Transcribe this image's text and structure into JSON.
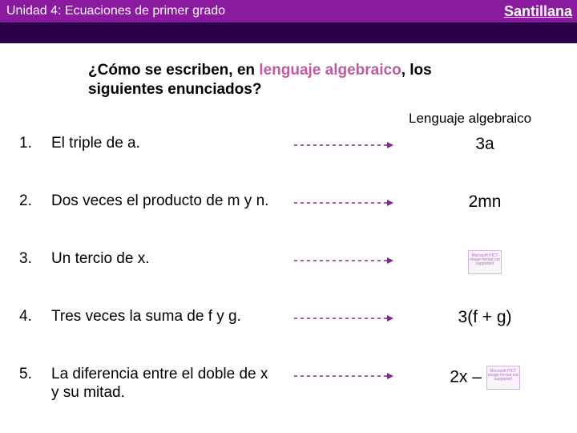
{
  "colors": {
    "header_bg": "#8a1a9e",
    "band2_bg": "#2b004a",
    "accent_text": "#c05aa0",
    "arrow_stroke": "#7a2a88",
    "text": "#000000",
    "bg": "#ffffff"
  },
  "header": {
    "left": "Unidad 4: Ecuaciones de primer grado",
    "right": "Santillana"
  },
  "question": {
    "pre": "¿Cómo se escriben, en ",
    "accent": "lenguaje algebraico",
    "post": ", los siguientes enunciados?"
  },
  "column_header": "Lenguaje algebraico",
  "rows": [
    {
      "n": "1.",
      "desc": "El triple de a.",
      "ans": "3a",
      "has_placeholder": false
    },
    {
      "n": "2.",
      "desc": "Dos veces el producto de m y n.",
      "ans": "2mn",
      "has_placeholder": false
    },
    {
      "n": "3.",
      "desc": "Un tercio de x.",
      "ans": "",
      "has_placeholder": true
    },
    {
      "n": "4.",
      "desc": "Tres veces la suma de f y g.",
      "ans": "3(f + g)",
      "has_placeholder": false
    },
    {
      "n": "5.",
      "desc": "La diferencia entre el doble de x y su mitad.",
      "ans": "2x – ",
      "has_placeholder": true
    }
  ],
  "arrow": {
    "dash": "4,4",
    "stroke_width": 1.4,
    "length": 118
  },
  "placeholder_text": "Microsoft PICT image format not supported"
}
